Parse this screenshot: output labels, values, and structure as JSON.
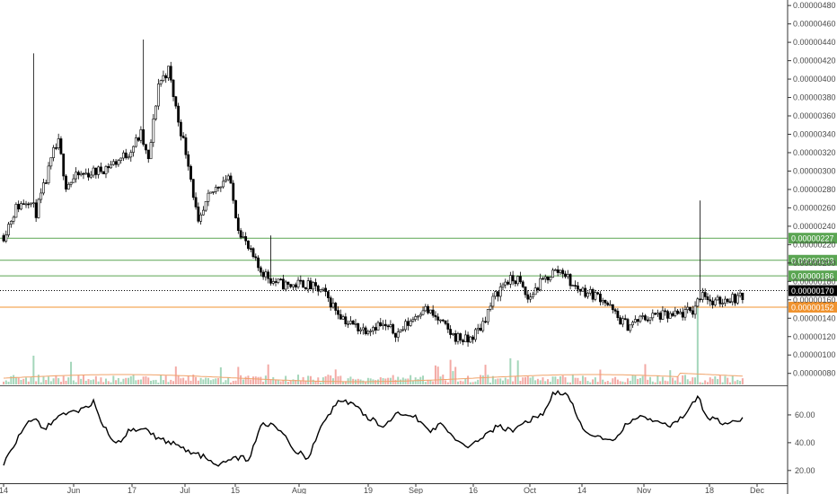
{
  "chart_data": {
    "type": "candlestick",
    "price_axis": {
      "ticks": [
        "0.00000080",
        "0.00000100",
        "0.00000120",
        "0.00000140",
        "0.00000160",
        "0.00000180",
        "0.00000200",
        "0.00000220",
        "0.00000240",
        "0.00000260",
        "0.00000280",
        "0.00000300",
        "0.00000320",
        "0.00000340",
        "0.00000360",
        "0.00000380",
        "0.00000400",
        "0.00000420",
        "0.00000440",
        "0.00000460",
        "0.00000480"
      ],
      "range": [
        6.8e-07,
        4.86e-06
      ]
    },
    "x_axis": {
      "ticks": [
        "14",
        "Jun",
        "17",
        "Jul",
        "15",
        "Aug",
        "19",
        "Sep",
        "16",
        "Oct",
        "14",
        "Nov",
        "18",
        "Dec"
      ]
    },
    "horizontal_levels": [
      {
        "label": "0.00000227",
        "value": 2.27e-06,
        "color": "#5aa552"
      },
      {
        "label": "0.00000203",
        "value": 2.03e-06,
        "color": "#5aa552"
      },
      {
        "label": "0.00000186",
        "value": 1.86e-06,
        "color": "#5aa552"
      },
      {
        "label": "0.00000170",
        "value": 1.7e-06,
        "color": "#000000"
      },
      {
        "label": "0.00000152",
        "value": 1.52e-06,
        "color": "#f0932f"
      }
    ],
    "price_path": [
      [
        0,
        2.3e-06
      ],
      [
        5,
        2.6e-06
      ],
      [
        10,
        2.7e-06
      ],
      [
        13,
        2.55e-06
      ],
      [
        17,
        2.9e-06
      ],
      [
        20,
        3.2e-06
      ],
      [
        22,
        3.3e-06
      ],
      [
        25,
        2.85e-06
      ],
      [
        30,
        2.95e-06
      ],
      [
        38,
        3e-06
      ],
      [
        45,
        3.1e-06
      ],
      [
        50,
        3.2e-06
      ],
      [
        55,
        3.4e-06
      ],
      [
        58,
        3.1e-06
      ],
      [
        62,
        3.95e-06
      ],
      [
        66,
        4.1e-06
      ],
      [
        70,
        3.55e-06
      ],
      [
        74,
        3.1e-06
      ],
      [
        78,
        2.4e-06
      ],
      [
        82,
        2.7e-06
      ],
      [
        86,
        2.85e-06
      ],
      [
        90,
        2.95e-06
      ],
      [
        94,
        2.4e-06
      ],
      [
        98,
        2.15e-06
      ],
      [
        102,
        1.95e-06
      ],
      [
        108,
        1.8e-06
      ],
      [
        114,
        1.75e-06
      ],
      [
        120,
        1.78e-06
      ],
      [
        128,
        1.68e-06
      ],
      [
        133,
        1.5e-06
      ],
      [
        138,
        1.35e-06
      ],
      [
        144,
        1.28e-06
      ],
      [
        150,
        1.33e-06
      ],
      [
        158,
        1.24e-06
      ],
      [
        164,
        1.4e-06
      ],
      [
        168,
        1.52e-06
      ],
      [
        174,
        1.38e-06
      ],
      [
        180,
        1.21e-06
      ],
      [
        186,
        1.15e-06
      ],
      [
        191,
        1.3e-06
      ],
      [
        197,
        1.65e-06
      ],
      [
        201,
        1.8e-06
      ],
      [
        206,
        1.82e-06
      ],
      [
        210,
        1.6e-06
      ],
      [
        214,
        1.75e-06
      ],
      [
        220,
        1.9e-06
      ],
      [
        224,
        1.92e-06
      ],
      [
        228,
        1.75e-06
      ],
      [
        234,
        1.68e-06
      ],
      [
        240,
        1.62e-06
      ],
      [
        246,
        1.4e-06
      ],
      [
        250,
        1.32e-06
      ],
      [
        256,
        1.4e-06
      ],
      [
        262,
        1.43e-06
      ],
      [
        268,
        1.42e-06
      ],
      [
        276,
        1.48e-06
      ],
      [
        280,
        1.7e-06
      ],
      [
        284,
        1.55e-06
      ],
      [
        290,
        1.62e-06
      ],
      [
        296,
        1.62e-06
      ]
    ],
    "volume_spike_index": 278,
    "rsi": {
      "ticks": [
        "20.00",
        "40.00",
        "60.00"
      ],
      "range": [
        16,
        80
      ],
      "path": [
        [
          0,
          24
        ],
        [
          6,
          45
        ],
        [
          12,
          58
        ],
        [
          16,
          50
        ],
        [
          20,
          56
        ],
        [
          26,
          62
        ],
        [
          32,
          64
        ],
        [
          36,
          70
        ],
        [
          40,
          52
        ],
        [
          45,
          38
        ],
        [
          50,
          48
        ],
        [
          56,
          52
        ],
        [
          62,
          42
        ],
        [
          68,
          40
        ],
        [
          74,
          34
        ],
        [
          80,
          30
        ],
        [
          86,
          22
        ],
        [
          92,
          30
        ],
        [
          98,
          28
        ],
        [
          104,
          55
        ],
        [
          110,
          50
        ],
        [
          116,
          36
        ],
        [
          122,
          28
        ],
        [
          128,
          55
        ],
        [
          134,
          70
        ],
        [
          140,
          68
        ],
        [
          146,
          58
        ],
        [
          152,
          52
        ],
        [
          158,
          62
        ],
        [
          164,
          60
        ],
        [
          170,
          48
        ],
        [
          176,
          54
        ],
        [
          182,
          40
        ],
        [
          186,
          35
        ],
        [
          192,
          45
        ],
        [
          198,
          52
        ],
        [
          204,
          48
        ],
        [
          210,
          56
        ],
        [
          216,
          60
        ],
        [
          220,
          76
        ],
        [
          226,
          74
        ],
        [
          232,
          50
        ],
        [
          238,
          44
        ],
        [
          244,
          40
        ],
        [
          250,
          55
        ],
        [
          256,
          58
        ],
        [
          262,
          55
        ],
        [
          266,
          52
        ],
        [
          272,
          58
        ],
        [
          278,
          73
        ],
        [
          282,
          58
        ],
        [
          288,
          55
        ],
        [
          296,
          57
        ]
      ]
    }
  }
}
